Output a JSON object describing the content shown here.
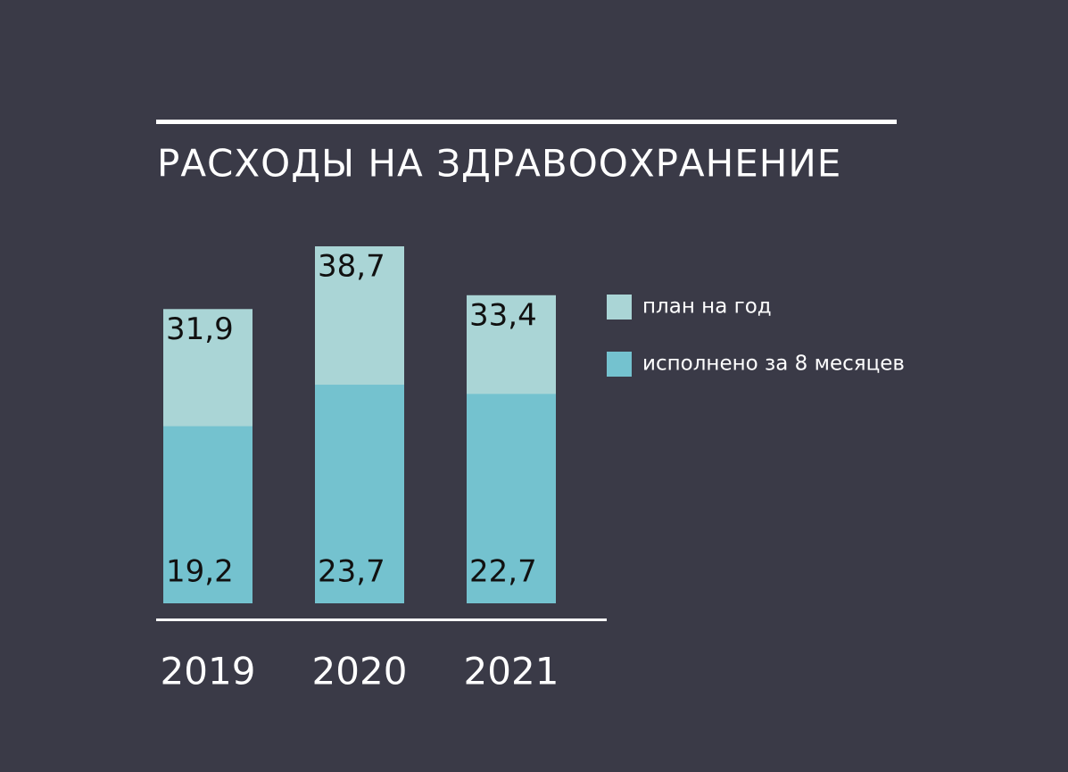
{
  "chart_data": {
    "type": "bar",
    "title": "РАСХОДЫ НА ЗДРАВООХРАНЕНИЕ",
    "categories": [
      "2019",
      "2020",
      "2021"
    ],
    "series": [
      {
        "name": "план на год",
        "color": "#aad5d6",
        "values": [
          31.9,
          38.7,
          33.4
        ],
        "value_labels": [
          "31,9",
          "38,7",
          "33,4"
        ]
      },
      {
        "name": "исполнено за 8 месяцев",
        "color": "#74c2cf",
        "values": [
          19.2,
          23.7,
          22.7
        ],
        "value_labels": [
          "19,2",
          "23,7",
          "22,7"
        ]
      }
    ]
  }
}
